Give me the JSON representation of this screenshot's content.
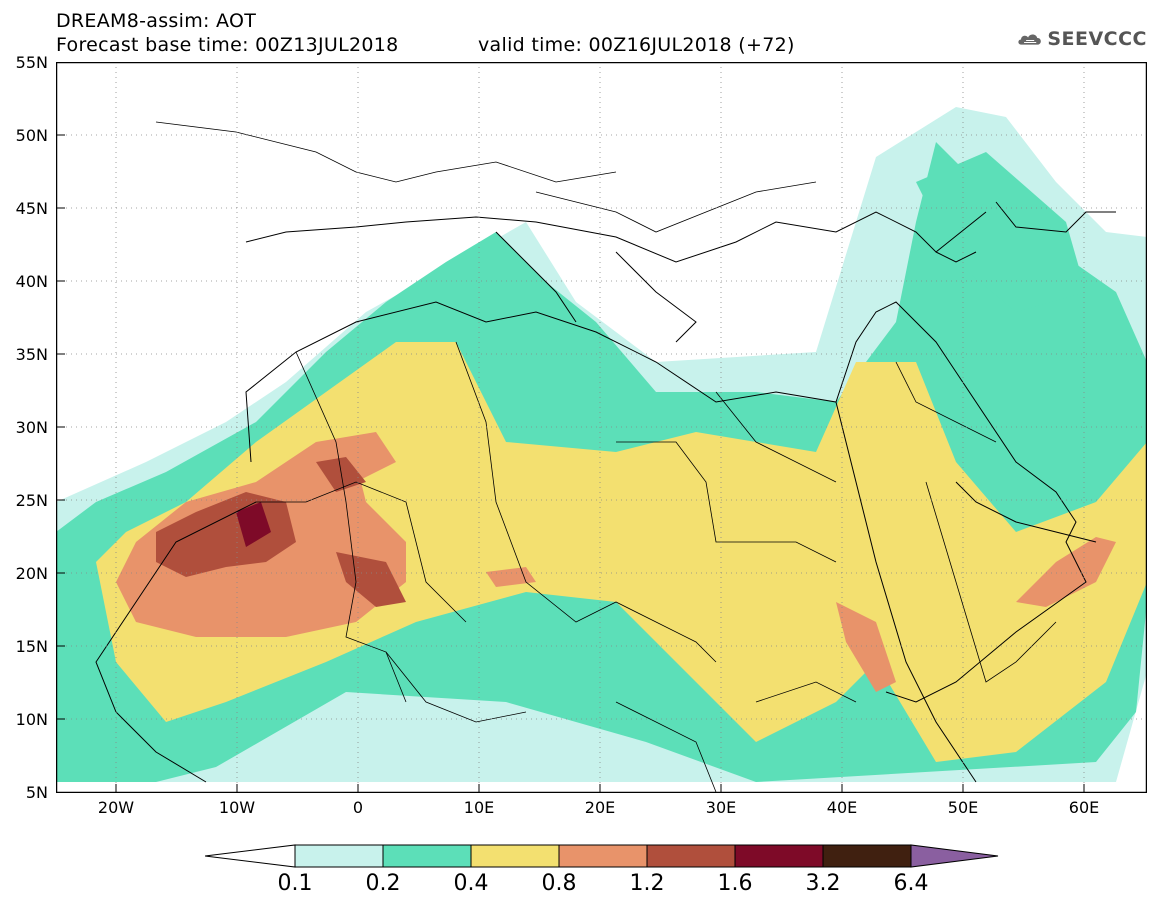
{
  "header": {
    "title": "DREAM8-assim: AOT",
    "base_time": "Forecast base time: 00Z13JUL2018",
    "valid_time": "valid time: 00Z16JUL2018 (+72)",
    "logo_text": "SEEVCCC",
    "logo_icon": "cloud-icon"
  },
  "map": {
    "projection": "lat-lon",
    "lon_range": [
      -25,
      65
    ],
    "lat_range": [
      5,
      55
    ],
    "lat_labels": [
      "55N",
      "50N",
      "45N",
      "40N",
      "35N",
      "30N",
      "25N",
      "20N",
      "15N",
      "10N",
      "5N"
    ],
    "lon_labels": [
      "20W",
      "10W",
      "0",
      "10E",
      "20E",
      "30E",
      "40E",
      "50E",
      "60E"
    ],
    "grid": "dotted"
  },
  "colorbar": {
    "thresholds": [
      "0.1",
      "0.2",
      "0.4",
      "0.8",
      "1.2",
      "1.6",
      "3.2",
      "6.4"
    ],
    "colors": [
      "#c8f2ec",
      "#5cdfb8",
      "#f3e070",
      "#e8936a",
      "#b04f3c",
      "#7e0a28",
      "#402010",
      "#8a5fa0"
    ]
  }
}
